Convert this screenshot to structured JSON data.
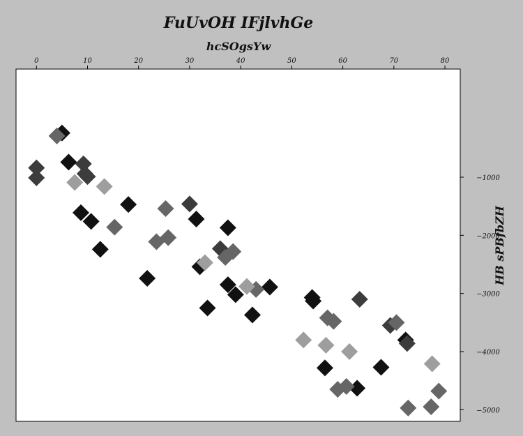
{
  "chart_data": {
    "type": "scatter",
    "title": "FuUvOH IFjlvhGe",
    "xlabel": "hcSOgsYw",
    "ylabel": "HB sPBfbZH",
    "x_axis_position": "top",
    "y_axis_position": "right",
    "xlim": [
      -4,
      83
    ],
    "ylim": [
      -5200,
      860
    ],
    "x_ticks": [
      0,
      10,
      20,
      30,
      40,
      50,
      60,
      70,
      80
    ],
    "y_ticks": [
      -1000,
      -2000,
      -3000,
      -4000,
      -5000
    ],
    "x_tick_labels": [
      "0",
      "10",
      "20",
      "30",
      "40",
      "50",
      "60",
      "70",
      "80"
    ],
    "y_tick_labels": [
      "−1000",
      "−2000",
      "−3000",
      "−4000",
      "−5000"
    ],
    "grid": false,
    "marker": "diamond",
    "colors": {
      "background": "#c0c0c0",
      "plot_background": "#ffffff",
      "series_black": "#111111",
      "series_dark": "#3c3c3c",
      "series_mid": "#666666",
      "series_light": "#9e9e9e"
    },
    "series": [
      {
        "color": "#111111",
        "points": [
          [
            5,
            -240
          ],
          [
            6.3,
            -740
          ],
          [
            8.7,
            -1610
          ],
          [
            10.7,
            -1760
          ],
          [
            12.5,
            -2240
          ],
          [
            18,
            -1470
          ],
          [
            21.7,
            -2740
          ],
          [
            31.3,
            -1720
          ],
          [
            32,
            -2540
          ],
          [
            33.5,
            -3250
          ],
          [
            37.5,
            -1870
          ],
          [
            37.5,
            -2850
          ],
          [
            39,
            -3020
          ],
          [
            42.3,
            -3370
          ],
          [
            45.7,
            -2890
          ],
          [
            54,
            -3070
          ],
          [
            54.2,
            -3130
          ],
          [
            56.5,
            -4280
          ],
          [
            62.8,
            -4630
          ],
          [
            67.5,
            -4270
          ],
          [
            72.3,
            -3800
          ]
        ]
      },
      {
        "color": "#3c3c3c",
        "points": [
          [
            0,
            -840
          ],
          [
            0,
            -1010
          ],
          [
            9.2,
            -770
          ],
          [
            9.5,
            -940
          ],
          [
            10,
            -990
          ],
          [
            30,
            -1460
          ],
          [
            36,
            -2230
          ],
          [
            63.3,
            -3100
          ],
          [
            69.3,
            -3550
          ],
          [
            72.6,
            -3860
          ]
        ]
      },
      {
        "color": "#666666",
        "points": [
          [
            4,
            -290
          ],
          [
            15.3,
            -1860
          ],
          [
            23.5,
            -2110
          ],
          [
            25.3,
            -1540
          ],
          [
            25.8,
            -2040
          ],
          [
            37,
            -2380
          ],
          [
            38.5,
            -2280
          ],
          [
            43,
            -2930
          ],
          [
            57,
            -3420
          ],
          [
            58.2,
            -3480
          ],
          [
            59,
            -4650
          ],
          [
            60.7,
            -4600
          ],
          [
            70.5,
            -3500
          ],
          [
            72.8,
            -4970
          ],
          [
            77.3,
            -4950
          ],
          [
            78.8,
            -4680
          ]
        ]
      },
      {
        "color": "#9e9e9e",
        "points": [
          [
            7.5,
            -1090
          ],
          [
            13.3,
            -1160
          ],
          [
            33,
            -2470
          ],
          [
            41.2,
            -2880
          ],
          [
            52.3,
            -3800
          ],
          [
            56.7,
            -3890
          ],
          [
            61.3,
            -4000
          ],
          [
            77.5,
            -4210
          ]
        ]
      }
    ]
  }
}
